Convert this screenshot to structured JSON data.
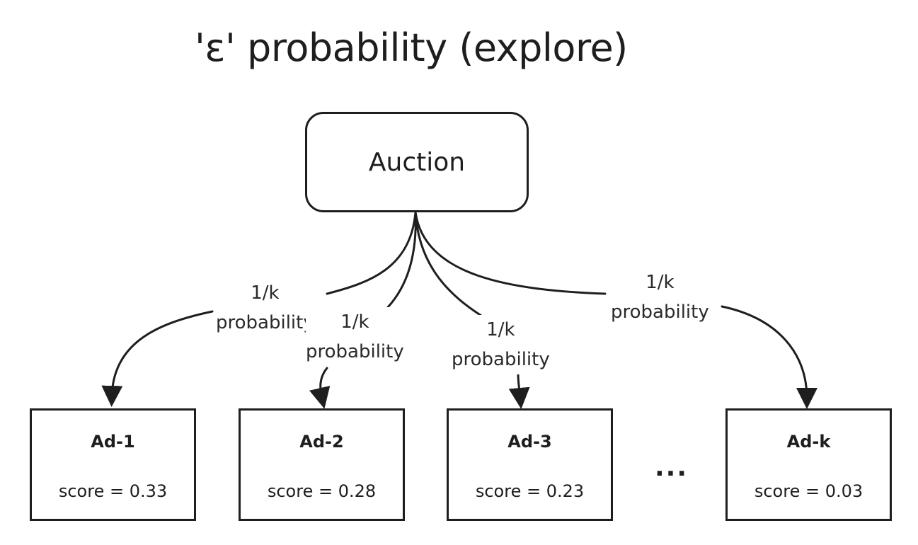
{
  "title": "'ε' probability (explore)",
  "auction": {
    "label": "Auction"
  },
  "edges": [
    {
      "line1": "1/k",
      "line2": "probability"
    },
    {
      "line1": "1/k",
      "line2": "probability"
    },
    {
      "line1": "1/k",
      "line2": "probability"
    },
    {
      "line1": "1/k",
      "line2": "probability"
    }
  ],
  "ads": [
    {
      "name": "Ad-1",
      "score": "score = 0.33"
    },
    {
      "name": "Ad-2",
      "score": "score = 0.28"
    },
    {
      "name": "Ad-3",
      "score": "score = 0.23"
    },
    {
      "name": "Ad-k",
      "score": "score = 0.03"
    }
  ],
  "ellipsis": "..."
}
